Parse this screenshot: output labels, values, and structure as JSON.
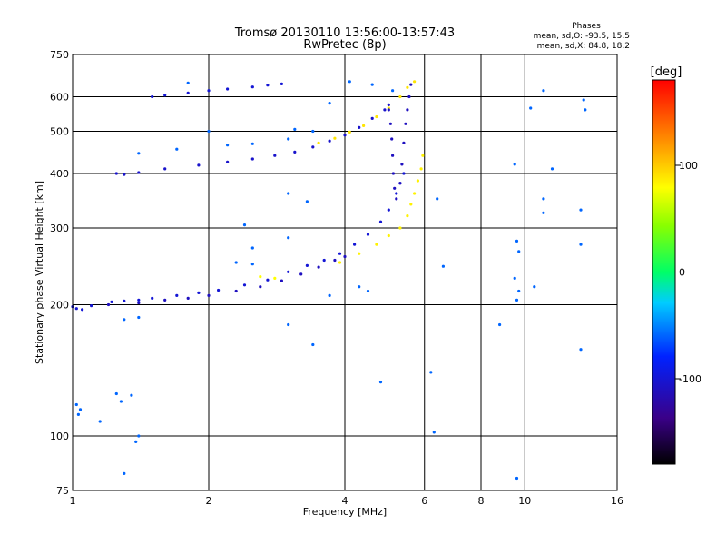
{
  "chart_data": {
    "type": "scatter",
    "title": "Tromsø 20130110 13:56:00-13:57:43",
    "subtitle": "RwPretec (8p)",
    "xlabel": "Frequency [MHz]",
    "ylabel": "Stationary phase Virtual Height [km]",
    "x_scale": "log2",
    "y_scale": "log",
    "xlim": [
      1,
      16
    ],
    "ylim": [
      75,
      750
    ],
    "x_ticks": [
      1,
      2,
      4,
      6,
      8,
      10,
      16
    ],
    "y_ticks": [
      75,
      100,
      200,
      300,
      400,
      500,
      600,
      750
    ],
    "grid": true,
    "stats": {
      "heading": "Phases",
      "line_O": "mean, sd,O:  -93.5, 15.5",
      "line_X": "mean, sd,X:  84.8, 18.2"
    },
    "colorbar": {
      "label": "[deg]",
      "range": [
        -180,
        180
      ],
      "ticks": [
        100,
        0,
        -100
      ],
      "tick_labels": [
        "100",
        "0",
        "-100"
      ]
    },
    "series": [
      {
        "points": [
          [
            1.0,
            198
          ],
          [
            1.02,
            196
          ],
          [
            1.05,
            195
          ],
          [
            1.1,
            199
          ],
          [
            1.22,
            203
          ],
          [
            1.3,
            204
          ],
          [
            1.4,
            205
          ],
          [
            1.5,
            207
          ],
          [
            1.7,
            210
          ],
          [
            1.9,
            213
          ],
          [
            2.1,
            216
          ],
          [
            2.4,
            222
          ],
          [
            2.7,
            228
          ],
          [
            3.0,
            238
          ],
          [
            3.3,
            246
          ],
          [
            3.6,
            253
          ],
          [
            3.9,
            262
          ],
          [
            4.2,
            275
          ],
          [
            4.5,
            290
          ],
          [
            4.8,
            310
          ],
          [
            5.0,
            330
          ],
          [
            5.2,
            360
          ],
          [
            5.3,
            380
          ],
          [
            5.4,
            400
          ]
        ],
        "phase": -100
      },
      {
        "points": [
          [
            1.2,
            200
          ],
          [
            1.4,
            202
          ],
          [
            1.6,
            205
          ],
          [
            1.8,
            207
          ],
          [
            2.0,
            210
          ],
          [
            2.3,
            215
          ],
          [
            2.6,
            220
          ],
          [
            2.9,
            227
          ],
          [
            3.2,
            235
          ],
          [
            3.5,
            244
          ],
          [
            3.8,
            253
          ],
          [
            4.0,
            258
          ]
        ],
        "phase": -110
      },
      {
        "points": [
          [
            3.9,
            250
          ],
          [
            4.3,
            262
          ],
          [
            4.7,
            275
          ],
          [
            5.0,
            288
          ],
          [
            5.3,
            300
          ],
          [
            5.5,
            320
          ],
          [
            5.6,
            340
          ],
          [
            5.7,
            360
          ],
          [
            5.8,
            385
          ],
          [
            5.9,
            410
          ],
          [
            5.95,
            440
          ]
        ],
        "phase": 85
      },
      {
        "points": [
          [
            2.6,
            232
          ],
          [
            2.8,
            230
          ]
        ],
        "phase": 80
      },
      {
        "points": [
          [
            1.25,
            400
          ],
          [
            1.3,
            398
          ],
          [
            1.4,
            402
          ],
          [
            1.6,
            410
          ],
          [
            1.9,
            418
          ],
          [
            2.2,
            425
          ],
          [
            2.5,
            432
          ],
          [
            2.8,
            440
          ],
          [
            3.1,
            448
          ],
          [
            3.4,
            460
          ],
          [
            3.7,
            475
          ],
          [
            4.0,
            490
          ],
          [
            4.3,
            510
          ],
          [
            4.6,
            535
          ],
          [
            4.9,
            560
          ],
          [
            5.0,
            575
          ]
        ],
        "phase": -105
      },
      {
        "points": [
          [
            3.5,
            470
          ],
          [
            3.8,
            482
          ],
          [
            4.1,
            498
          ],
          [
            4.4,
            515
          ],
          [
            4.7,
            540
          ],
          [
            5.0,
            565
          ],
          [
            5.3,
            600
          ],
          [
            5.5,
            630
          ],
          [
            5.7,
            650
          ]
        ],
        "phase": 90
      },
      {
        "points": [
          [
            1.5,
            600
          ],
          [
            1.6,
            605
          ],
          [
            1.8,
            612
          ],
          [
            2.0,
            620
          ],
          [
            2.2,
            625
          ],
          [
            2.5,
            632
          ],
          [
            2.7,
            638
          ],
          [
            2.9,
            642
          ]
        ],
        "phase": -100
      },
      {
        "points": [
          [
            5.0,
            560
          ],
          [
            5.05,
            520
          ],
          [
            5.08,
            480
          ],
          [
            5.1,
            440
          ],
          [
            5.12,
            400
          ],
          [
            5.15,
            370
          ],
          [
            5.2,
            350
          ],
          [
            5.3,
            380
          ],
          [
            5.35,
            420
          ],
          [
            5.4,
            470
          ],
          [
            5.45,
            520
          ],
          [
            5.5,
            560
          ],
          [
            5.55,
            600
          ],
          [
            5.6,
            640
          ]
        ],
        "phase": -110
      },
      {
        "points": [
          [
            1.02,
            118
          ],
          [
            1.04,
            115
          ],
          [
            1.03,
            112
          ],
          [
            1.25,
            125
          ],
          [
            1.35,
            124
          ],
          [
            1.28,
            120
          ],
          [
            1.15,
            108
          ],
          [
            1.4,
            100
          ],
          [
            1.3,
            82
          ],
          [
            1.38,
            97
          ],
          [
            6.3,
            102
          ],
          [
            9.6,
            80
          ],
          [
            1.3,
            185
          ],
          [
            1.4,
            187
          ],
          [
            6.4,
            350
          ],
          [
            9.5,
            420
          ],
          [
            9.6,
            280
          ],
          [
            9.7,
            265
          ],
          [
            9.5,
            230
          ],
          [
            9.7,
            215
          ],
          [
            10.5,
            220
          ],
          [
            11.5,
            410
          ],
          [
            13.5,
            590
          ],
          [
            13.6,
            560
          ],
          [
            11.0,
            620
          ],
          [
            10.3,
            565
          ],
          [
            11.0,
            350
          ],
          [
            11.0,
            325
          ],
          [
            13.3,
            330
          ],
          [
            13.3,
            275
          ],
          [
            13.3,
            158
          ],
          [
            8.8,
            180
          ],
          [
            9.6,
            205
          ],
          [
            3.0,
            180
          ],
          [
            3.4,
            162
          ],
          [
            4.8,
            133
          ],
          [
            6.2,
            140
          ],
          [
            2.3,
            250
          ],
          [
            2.5,
            248
          ],
          [
            3.0,
            285
          ],
          [
            2.5,
            270
          ],
          [
            3.7,
            210
          ],
          [
            4.5,
            215
          ],
          [
            4.3,
            220
          ],
          [
            6.6,
            245
          ],
          [
            2.0,
            500
          ],
          [
            1.4,
            445
          ],
          [
            1.7,
            455
          ],
          [
            2.2,
            465
          ],
          [
            2.5,
            468
          ],
          [
            3.0,
            480
          ],
          [
            3.4,
            500
          ],
          [
            3.1,
            505
          ],
          [
            4.1,
            650
          ],
          [
            4.6,
            640
          ],
          [
            5.1,
            620
          ],
          [
            3.7,
            580
          ],
          [
            1.8,
            645
          ],
          [
            2.4,
            305
          ],
          [
            3.0,
            360
          ],
          [
            3.3,
            345
          ]
        ],
        "phase": -60
      }
    ]
  }
}
